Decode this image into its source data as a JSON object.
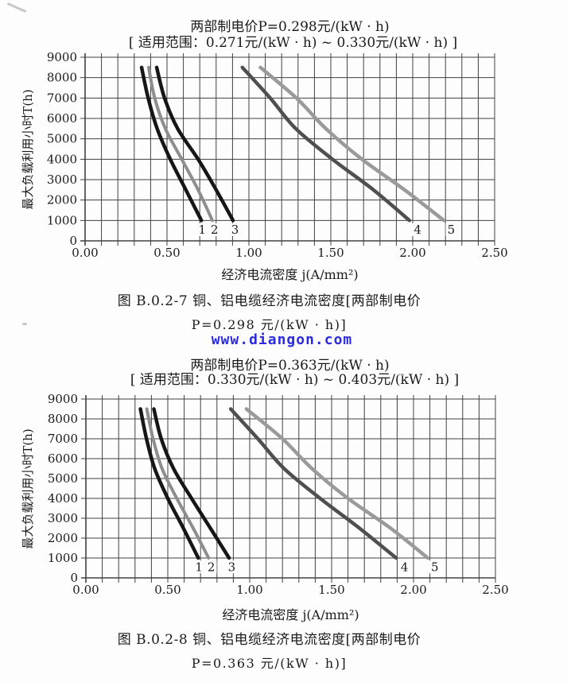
{
  "watermark": {
    "text": "www.diangon.com",
    "color": "#2b2be0"
  },
  "figures": [
    {
      "caption_line1": "图 B.0.2-7  铜、铝电缆经济电流密度[两部制电价",
      "caption_line2": "P=0.298 元/(kW · h)]"
    },
    {
      "caption_line1": "图 B.0.2-8  铜、铝电缆经济电流密度[两部制电价",
      "caption_line2": "P=0.363 元/(kW · h)]"
    }
  ],
  "chart_data": [
    {
      "type": "line",
      "title": "两部制电价P=0.298元/(kW · h)",
      "subtitle": "[ 适用范围：0.271元/(kW · h) ~ 0.330元/(kW · h) ]",
      "xlabel": "经济电流密度 j(A/mm²)",
      "ylabel": "最大负载利用小时T(h)",
      "xlim": [
        0,
        2.5
      ],
      "ylim": [
        0,
        9000
      ],
      "x_grid_step": 0.1,
      "y_grid_step": 1000,
      "x_label_step": 0.5,
      "x_tick_labels": [
        "0.00",
        "0.50",
        "1.00",
        "1.50",
        "2.00",
        "2.50"
      ],
      "y_tick_labels": [
        "0",
        "1000",
        "2000",
        "3000",
        "4000",
        "5000",
        "6000",
        "7000",
        "8000",
        "9000"
      ],
      "grid": true,
      "legend": "none",
      "T_samples": [
        8500,
        7000,
        5500,
        4000,
        2500,
        1000
      ],
      "series": [
        {
          "name": "1",
          "color": "#161616",
          "width": 4.5,
          "j": [
            0.345,
            0.385,
            0.44,
            0.52,
            0.615,
            0.71
          ],
          "label_j": 0.715
        },
        {
          "name": "2",
          "color": "#8e8e8e",
          "width": 4.0,
          "j": [
            0.388,
            0.425,
            0.49,
            0.59,
            0.69,
            0.777
          ],
          "label_j": 0.79
        },
        {
          "name": "3",
          "color": "#161616",
          "width": 4.5,
          "j": [
            0.437,
            0.485,
            0.565,
            0.69,
            0.8,
            0.903
          ],
          "label_j": 0.915
        },
        {
          "name": "4",
          "color": "#4f4f4f",
          "width": 4.5,
          "j": [
            0.96,
            1.13,
            1.286,
            1.51,
            1.76,
            1.98
          ],
          "label_j": 2.03
        },
        {
          "name": "5",
          "color": "#9a9a9a",
          "width": 4.5,
          "j": [
            1.07,
            1.29,
            1.47,
            1.69,
            1.95,
            2.19
          ],
          "label_j": 2.235
        }
      ]
    },
    {
      "type": "line",
      "title": "两部制电价P=0.363元/(kW · h)",
      "subtitle": "[ 适用范围：0.330元/(kW · h) ~ 0.403元/(kW · h) ]",
      "xlabel": "经济电流密度 j(A/mm²)",
      "ylabel": "最大负载利用小时T(h)",
      "xlim": [
        0,
        2.5
      ],
      "ylim": [
        0,
        9000
      ],
      "x_grid_step": 0.1,
      "y_grid_step": 1000,
      "x_label_step": 0.5,
      "x_tick_labels": [
        "0.00",
        "0.50",
        "1.00",
        "1.50",
        "2.00",
        "2.50"
      ],
      "y_tick_labels": [
        "0",
        "1000",
        "2000",
        "3000",
        "4000",
        "5000",
        "6000",
        "7000",
        "8000",
        "9000"
      ],
      "grid": true,
      "legend": "none",
      "T_samples": [
        8500,
        7000,
        5500,
        4000,
        2500,
        1000
      ],
      "series": [
        {
          "name": "1",
          "color": "#161616",
          "width": 4.5,
          "j": [
            0.333,
            0.37,
            0.42,
            0.5,
            0.595,
            0.686
          ],
          "label_j": 0.69
        },
        {
          "name": "2",
          "color": "#8e8e8e",
          "width": 4.0,
          "j": [
            0.372,
            0.41,
            0.465,
            0.555,
            0.655,
            0.749
          ],
          "label_j": 0.765
        },
        {
          "name": "3",
          "color": "#161616",
          "width": 4.5,
          "j": [
            0.415,
            0.46,
            0.535,
            0.645,
            0.76,
            0.874
          ],
          "label_j": 0.89
        },
        {
          "name": "4",
          "color": "#4f4f4f",
          "width": 4.5,
          "j": [
            0.884,
            1.05,
            1.21,
            1.43,
            1.67,
            1.894
          ],
          "label_j": 1.945
        },
        {
          "name": "5",
          "color": "#9a9a9a",
          "width": 4.5,
          "j": [
            0.98,
            1.2,
            1.38,
            1.6,
            1.86,
            2.087
          ],
          "label_j": 2.13
        }
      ]
    }
  ]
}
